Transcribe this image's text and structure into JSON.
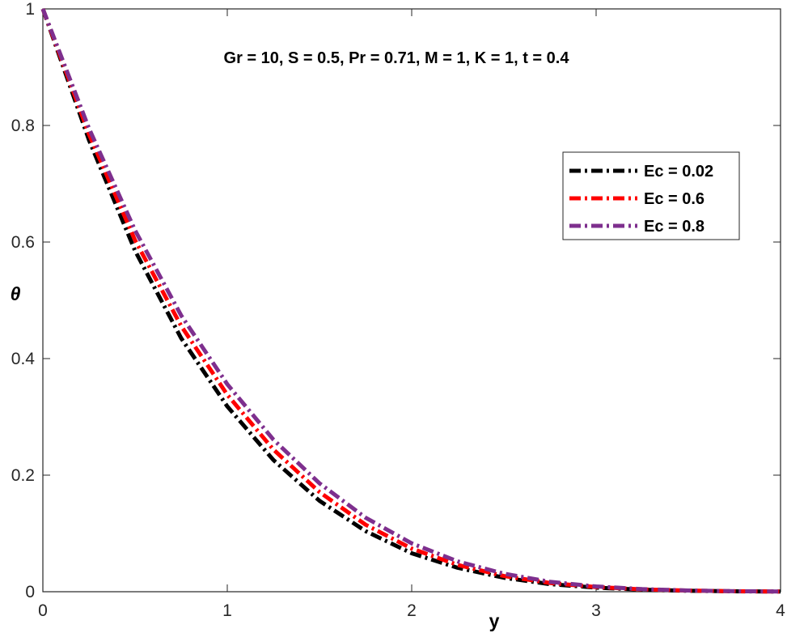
{
  "chart_data": {
    "type": "line",
    "title": "",
    "annotation": "Gr = 10, S = 0.5, Pr = 0.71, M = 1, K = 1, t = 0.4",
    "xlabel": "y",
    "ylabel": "θ",
    "xlim": [
      0,
      4
    ],
    "ylim": [
      0,
      1
    ],
    "xticks": [
      "0",
      "1",
      "2",
      "3",
      "4"
    ],
    "yticks": [
      "0",
      "0.2",
      "0.4",
      "0.6",
      "0.8",
      "1"
    ],
    "grid": false,
    "legend_position": "top-right",
    "x": [
      0,
      0.25,
      0.5,
      0.75,
      1.0,
      1.25,
      1.5,
      1.75,
      2.0,
      2.25,
      2.5,
      2.75,
      3.0,
      3.25,
      3.5,
      3.75,
      4.0
    ],
    "series": [
      {
        "name": "Ec = 0.02",
        "color": "#000000",
        "values": [
          1.0,
          0.775,
          0.585,
          0.435,
          0.318,
          0.226,
          0.156,
          0.104,
          0.066,
          0.041,
          0.024,
          0.013,
          0.007,
          0.0035,
          0.0016,
          0.0007,
          0.0003
        ]
      },
      {
        "name": "Ec = 0.6",
        "color": "#ff0000",
        "values": [
          1.0,
          0.785,
          0.603,
          0.456,
          0.338,
          0.244,
          0.171,
          0.115,
          0.074,
          0.046,
          0.027,
          0.015,
          0.008,
          0.004,
          0.002,
          0.0008,
          0.0003
        ]
      },
      {
        "name": "Ec = 0.8",
        "color": "#7e2f8e",
        "values": [
          1.0,
          0.795,
          0.62,
          0.474,
          0.356,
          0.261,
          0.186,
          0.127,
          0.083,
          0.052,
          0.031,
          0.017,
          0.009,
          0.0045,
          0.0021,
          0.0009,
          0.0003
        ]
      }
    ]
  }
}
